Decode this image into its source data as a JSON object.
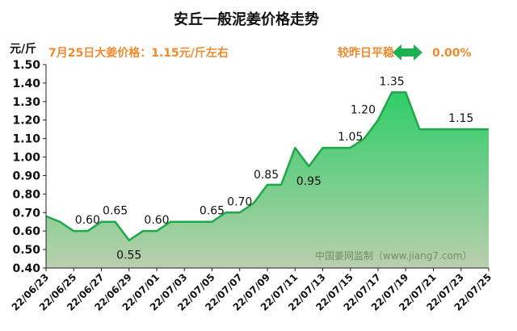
{
  "chart_data": {
    "type": "area",
    "title": "安丘一般泥姜价格走势",
    "ylabel": "元/斤",
    "subtitle_price": "7月25日大姜价格：1.15元/斤左右",
    "compare_label": "较昨日平稳",
    "compare_value": "0.00%",
    "watermark": "中国姜网监制（www.jiang7.com）",
    "ylim": [
      0.4,
      1.5
    ],
    "yticks": [
      "0.40",
      "0.50",
      "0.60",
      "0.70",
      "0.80",
      "0.90",
      "1.00",
      "1.10",
      "1.20",
      "1.30",
      "1.40",
      "1.50"
    ],
    "xtick_labels": [
      "22/06/23",
      "22/06/25",
      "22/06/27",
      "22/06/29",
      "22/07/01",
      "22/07/03",
      "22/07/05",
      "22/07/07",
      "22/07/09",
      "22/07/11",
      "22/07/13",
      "22/07/15",
      "22/07/17",
      "22/07/19",
      "22/07/21",
      "22/07/23",
      "22/07/25"
    ],
    "values": [
      0.68,
      0.65,
      0.6,
      0.6,
      0.65,
      0.65,
      0.55,
      0.6,
      0.6,
      0.65,
      0.65,
      0.65,
      0.65,
      0.7,
      0.7,
      0.75,
      0.85,
      0.85,
      1.05,
      0.95,
      1.05,
      1.05,
      1.05,
      1.1,
      1.2,
      1.35,
      1.35,
      1.15,
      1.15,
      1.15,
      1.15,
      1.15,
      1.15
    ],
    "data_labels": [
      {
        "index": 3,
        "text": "0.60",
        "pos": "above"
      },
      {
        "index": 5,
        "text": "0.65",
        "pos": "above"
      },
      {
        "index": 6,
        "text": "0.55",
        "pos": "below"
      },
      {
        "index": 8,
        "text": "0.60",
        "pos": "above"
      },
      {
        "index": 12,
        "text": "0.65",
        "pos": "above"
      },
      {
        "index": 14,
        "text": "0.70",
        "pos": "above"
      },
      {
        "index": 17,
        "text": "0.85",
        "pos": "left"
      },
      {
        "index": 19,
        "text": "0.95",
        "pos": "below"
      },
      {
        "index": 22,
        "text": "1.05",
        "pos": "above"
      },
      {
        "index": 24,
        "text": "1.20",
        "pos": "left"
      },
      {
        "index": 25,
        "text": "1.35",
        "pos": "above"
      },
      {
        "index": 30,
        "text": "1.15",
        "pos": "above"
      }
    ],
    "colors": {
      "line": "#1fa84a",
      "fill_top": "#2fce68",
      "fill_bottom": "#b9cfad",
      "title": "#111111",
      "accent": "#ef8a2e",
      "arrow": "#1cb04e",
      "watermark": "#6f8f66"
    }
  }
}
